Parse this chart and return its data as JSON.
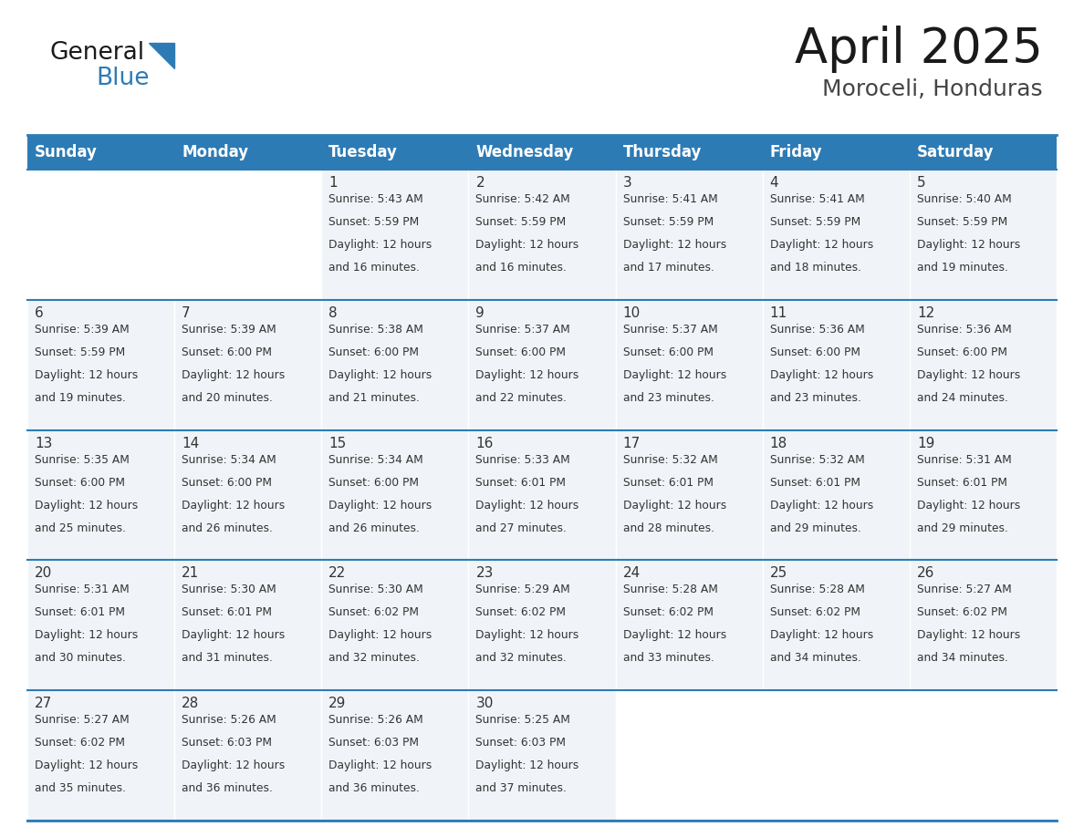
{
  "title": "April 2025",
  "subtitle": "Moroceli, Honduras",
  "header_color": "#2D7BB5",
  "header_text_color": "#FFFFFF",
  "cell_bg_even": "#F0F4F8",
  "cell_bg_odd": "#FFFFFF",
  "cell_bg_empty": "#FFFFFF",
  "border_color": "#2D7BB5",
  "text_color": "#333333",
  "days_of_week": [
    "Sunday",
    "Monday",
    "Tuesday",
    "Wednesday",
    "Thursday",
    "Friday",
    "Saturday"
  ],
  "calendar_data": [
    [
      {
        "day": "",
        "info": ""
      },
      {
        "day": "",
        "info": ""
      },
      {
        "day": "1",
        "info": "Sunrise: 5:43 AM\nSunset: 5:59 PM\nDaylight: 12 hours\nand 16 minutes."
      },
      {
        "day": "2",
        "info": "Sunrise: 5:42 AM\nSunset: 5:59 PM\nDaylight: 12 hours\nand 16 minutes."
      },
      {
        "day": "3",
        "info": "Sunrise: 5:41 AM\nSunset: 5:59 PM\nDaylight: 12 hours\nand 17 minutes."
      },
      {
        "day": "4",
        "info": "Sunrise: 5:41 AM\nSunset: 5:59 PM\nDaylight: 12 hours\nand 18 minutes."
      },
      {
        "day": "5",
        "info": "Sunrise: 5:40 AM\nSunset: 5:59 PM\nDaylight: 12 hours\nand 19 minutes."
      }
    ],
    [
      {
        "day": "6",
        "info": "Sunrise: 5:39 AM\nSunset: 5:59 PM\nDaylight: 12 hours\nand 19 minutes."
      },
      {
        "day": "7",
        "info": "Sunrise: 5:39 AM\nSunset: 6:00 PM\nDaylight: 12 hours\nand 20 minutes."
      },
      {
        "day": "8",
        "info": "Sunrise: 5:38 AM\nSunset: 6:00 PM\nDaylight: 12 hours\nand 21 minutes."
      },
      {
        "day": "9",
        "info": "Sunrise: 5:37 AM\nSunset: 6:00 PM\nDaylight: 12 hours\nand 22 minutes."
      },
      {
        "day": "10",
        "info": "Sunrise: 5:37 AM\nSunset: 6:00 PM\nDaylight: 12 hours\nand 23 minutes."
      },
      {
        "day": "11",
        "info": "Sunrise: 5:36 AM\nSunset: 6:00 PM\nDaylight: 12 hours\nand 23 minutes."
      },
      {
        "day": "12",
        "info": "Sunrise: 5:36 AM\nSunset: 6:00 PM\nDaylight: 12 hours\nand 24 minutes."
      }
    ],
    [
      {
        "day": "13",
        "info": "Sunrise: 5:35 AM\nSunset: 6:00 PM\nDaylight: 12 hours\nand 25 minutes."
      },
      {
        "day": "14",
        "info": "Sunrise: 5:34 AM\nSunset: 6:00 PM\nDaylight: 12 hours\nand 26 minutes."
      },
      {
        "day": "15",
        "info": "Sunrise: 5:34 AM\nSunset: 6:00 PM\nDaylight: 12 hours\nand 26 minutes."
      },
      {
        "day": "16",
        "info": "Sunrise: 5:33 AM\nSunset: 6:01 PM\nDaylight: 12 hours\nand 27 minutes."
      },
      {
        "day": "17",
        "info": "Sunrise: 5:32 AM\nSunset: 6:01 PM\nDaylight: 12 hours\nand 28 minutes."
      },
      {
        "day": "18",
        "info": "Sunrise: 5:32 AM\nSunset: 6:01 PM\nDaylight: 12 hours\nand 29 minutes."
      },
      {
        "day": "19",
        "info": "Sunrise: 5:31 AM\nSunset: 6:01 PM\nDaylight: 12 hours\nand 29 minutes."
      }
    ],
    [
      {
        "day": "20",
        "info": "Sunrise: 5:31 AM\nSunset: 6:01 PM\nDaylight: 12 hours\nand 30 minutes."
      },
      {
        "day": "21",
        "info": "Sunrise: 5:30 AM\nSunset: 6:01 PM\nDaylight: 12 hours\nand 31 minutes."
      },
      {
        "day": "22",
        "info": "Sunrise: 5:30 AM\nSunset: 6:02 PM\nDaylight: 12 hours\nand 32 minutes."
      },
      {
        "day": "23",
        "info": "Sunrise: 5:29 AM\nSunset: 6:02 PM\nDaylight: 12 hours\nand 32 minutes."
      },
      {
        "day": "24",
        "info": "Sunrise: 5:28 AM\nSunset: 6:02 PM\nDaylight: 12 hours\nand 33 minutes."
      },
      {
        "day": "25",
        "info": "Sunrise: 5:28 AM\nSunset: 6:02 PM\nDaylight: 12 hours\nand 34 minutes."
      },
      {
        "day": "26",
        "info": "Sunrise: 5:27 AM\nSunset: 6:02 PM\nDaylight: 12 hours\nand 34 minutes."
      }
    ],
    [
      {
        "day": "27",
        "info": "Sunrise: 5:27 AM\nSunset: 6:02 PM\nDaylight: 12 hours\nand 35 minutes."
      },
      {
        "day": "28",
        "info": "Sunrise: 5:26 AM\nSunset: 6:03 PM\nDaylight: 12 hours\nand 36 minutes."
      },
      {
        "day": "29",
        "info": "Sunrise: 5:26 AM\nSunset: 6:03 PM\nDaylight: 12 hours\nand 36 minutes."
      },
      {
        "day": "30",
        "info": "Sunrise: 5:25 AM\nSunset: 6:03 PM\nDaylight: 12 hours\nand 37 minutes."
      },
      {
        "day": "",
        "info": ""
      },
      {
        "day": "",
        "info": ""
      },
      {
        "day": "",
        "info": ""
      }
    ]
  ],
  "title_fontsize": 38,
  "subtitle_fontsize": 18,
  "header_font_size": 12,
  "day_font_size": 11,
  "info_font_size": 8.8,
  "logo_general_fontsize": 19,
  "logo_blue_fontsize": 19
}
